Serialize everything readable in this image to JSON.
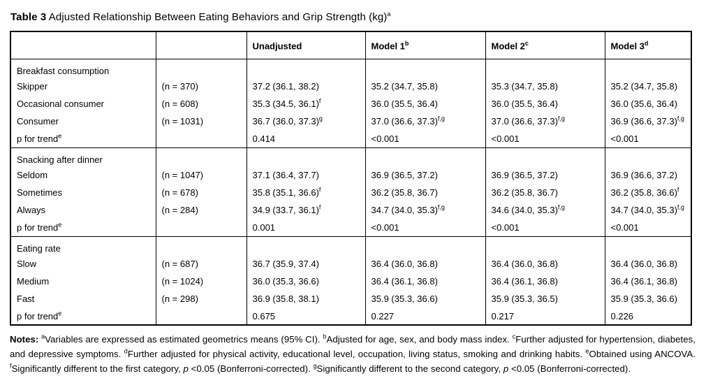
{
  "colors": {
    "text": "#000000",
    "border": "#000000",
    "background": "#ffffff"
  },
  "title": {
    "label": "Table 3",
    "text": "Adjusted Relationship Between Eating Behaviors and Grip Strength (kg)",
    "sup": "a"
  },
  "table": {
    "header": [
      {
        "label": "",
        "sup": ""
      },
      {
        "label": "",
        "sup": ""
      },
      {
        "label": "Unadjusted",
        "sup": ""
      },
      {
        "label": "Model 1",
        "sup": "b"
      },
      {
        "label": "Model 2",
        "sup": "c"
      },
      {
        "label": "Model 3",
        "sup": "d"
      }
    ],
    "sections": [
      {
        "title": "Breakfast consumption",
        "rows": [
          {
            "label": "Skipper",
            "label_sup": "",
            "n": "(n = 370)",
            "cells": [
              {
                "v": "37.2 (36.1, 38.2)",
                "sup": ""
              },
              {
                "v": "35.2 (34.7, 35.8)",
                "sup": ""
              },
              {
                "v": "35.3 (34.7, 35.8)",
                "sup": ""
              },
              {
                "v": "35.2 (34.7, 35.8)",
                "sup": ""
              }
            ]
          },
          {
            "label": "Occasional consumer",
            "label_sup": "",
            "n": "(n = 608)",
            "cells": [
              {
                "v": "35.3 (34.5, 36.1)",
                "sup": "f"
              },
              {
                "v": "36.0 (35.5, 36.4)",
                "sup": ""
              },
              {
                "v": "36.0 (35.5, 36.4)",
                "sup": ""
              },
              {
                "v": "36.0 (35.6, 36.4)",
                "sup": ""
              }
            ]
          },
          {
            "label": "Consumer",
            "label_sup": "",
            "n": "(n = 1031)",
            "cells": [
              {
                "v": "36.7 (36.0, 37.3)",
                "sup": "g"
              },
              {
                "v": "37.0 (36.6, 37.3)",
                "sup": "f,g"
              },
              {
                "v": "37.0 (36.6, 37.3)",
                "sup": "f,g"
              },
              {
                "v": "36.9 (36.6, 37.3)",
                "sup": "f,g"
              }
            ]
          },
          {
            "label": "p for trend",
            "label_sup": "e",
            "n": "",
            "cells": [
              {
                "v": "0.414",
                "sup": ""
              },
              {
                "v": "<0.001",
                "sup": ""
              },
              {
                "v": "<0.001",
                "sup": ""
              },
              {
                "v": "<0.001",
                "sup": ""
              }
            ]
          }
        ]
      },
      {
        "title": "Snacking after dinner",
        "rows": [
          {
            "label": "Seldom",
            "label_sup": "",
            "n": "(n = 1047)",
            "cells": [
              {
                "v": "37.1 (36.4, 37.7)",
                "sup": ""
              },
              {
                "v": "36.9 (36.5, 37.2)",
                "sup": ""
              },
              {
                "v": "36.9 (36.5, 37.2)",
                "sup": ""
              },
              {
                "v": "36.9 (36.6, 37.2)",
                "sup": ""
              }
            ]
          },
          {
            "label": "Sometimes",
            "label_sup": "",
            "n": "(n = 678)",
            "cells": [
              {
                "v": "35.8 (35.1, 36.6)",
                "sup": "f"
              },
              {
                "v": "36.2 (35.8, 36.7)",
                "sup": ""
              },
              {
                "v": "36.2 (35.8, 36.7)",
                "sup": ""
              },
              {
                "v": "36.2 (35.8, 36.6)",
                "sup": "f"
              }
            ]
          },
          {
            "label": "Always",
            "label_sup": "",
            "n": "(n = 284)",
            "cells": [
              {
                "v": "34.9 (33.7, 36.1)",
                "sup": "f"
              },
              {
                "v": "34.7 (34.0, 35.3)",
                "sup": "f,g"
              },
              {
                "v": "34.6 (34.0, 35.3)",
                "sup": "f,g"
              },
              {
                "v": "34.7 (34.0, 35.3)",
                "sup": "f,g"
              }
            ]
          },
          {
            "label": "p for trend",
            "label_sup": "e",
            "n": "",
            "cells": [
              {
                "v": "0.001",
                "sup": ""
              },
              {
                "v": "<0.001",
                "sup": ""
              },
              {
                "v": "<0.001",
                "sup": ""
              },
              {
                "v": "<0.001",
                "sup": ""
              }
            ]
          }
        ]
      },
      {
        "title": "Eating rate",
        "rows": [
          {
            "label": "Slow",
            "label_sup": "",
            "n": "(n = 687)",
            "cells": [
              {
                "v": "36.7 (35.9, 37.4)",
                "sup": ""
              },
              {
                "v": "36.4 (36.0, 36.8)",
                "sup": ""
              },
              {
                "v": "36.4 (36.0, 36.8)",
                "sup": ""
              },
              {
                "v": "36.4 (36.0, 36.8)",
                "sup": ""
              }
            ]
          },
          {
            "label": "Medium",
            "label_sup": "",
            "n": "(n = 1024)",
            "cells": [
              {
                "v": "36.0 (35.3, 36.6)",
                "sup": ""
              },
              {
                "v": "36.4 (36.1, 36.8)",
                "sup": ""
              },
              {
                "v": "36.4 (36.1, 36.8)",
                "sup": ""
              },
              {
                "v": "36.4 (36.1, 36.8)",
                "sup": ""
              }
            ]
          },
          {
            "label": "Fast",
            "label_sup": "",
            "n": "(n = 298)",
            "cells": [
              {
                "v": "36.9 (35.8, 38.1)",
                "sup": ""
              },
              {
                "v": "35.9 (35.3, 36.6)",
                "sup": ""
              },
              {
                "v": "35.9 (35.3, 36.5)",
                "sup": ""
              },
              {
                "v": "35.9 (35.3, 36.6)",
                "sup": ""
              }
            ]
          },
          {
            "label": "p for trend",
            "label_sup": "e",
            "n": "",
            "cells": [
              {
                "v": "0.675",
                "sup": ""
              },
              {
                "v": "0.227",
                "sup": ""
              },
              {
                "v": "0.217",
                "sup": ""
              },
              {
                "v": "0.226",
                "sup": ""
              }
            ]
          }
        ]
      }
    ]
  },
  "notes": {
    "runs": [
      {
        "text": "Notes: ",
        "bold": true
      },
      {
        "text": "a",
        "sup": true
      },
      {
        "text": "Variables are expressed as estimated geometrics means (95% CI). "
      },
      {
        "text": "b",
        "sup": true
      },
      {
        "text": "Adjusted for age, sex, and body mass index. "
      },
      {
        "text": "c",
        "sup": true
      },
      {
        "text": "Further adjusted for hypertension, diabetes, and depressive symptoms. "
      },
      {
        "text": "d",
        "sup": true
      },
      {
        "text": "Further adjusted for physical activity, educational level, occupation, living status, smoking and drinking habits. "
      },
      {
        "text": "e",
        "sup": true
      },
      {
        "text": "Obtained using ANCOVA. "
      },
      {
        "text": "f",
        "sup": true
      },
      {
        "text": "Significantly different to the first category, "
      },
      {
        "text": "p",
        "italic": true
      },
      {
        "text": " <0.05 (Bonferroni-corrected). "
      },
      {
        "text": "g",
        "sup": true
      },
      {
        "text": "Significantly different to the second category, "
      },
      {
        "text": "p",
        "italic": true
      },
      {
        "text": " <0.05 (Bonferroni-corrected)."
      }
    ]
  }
}
